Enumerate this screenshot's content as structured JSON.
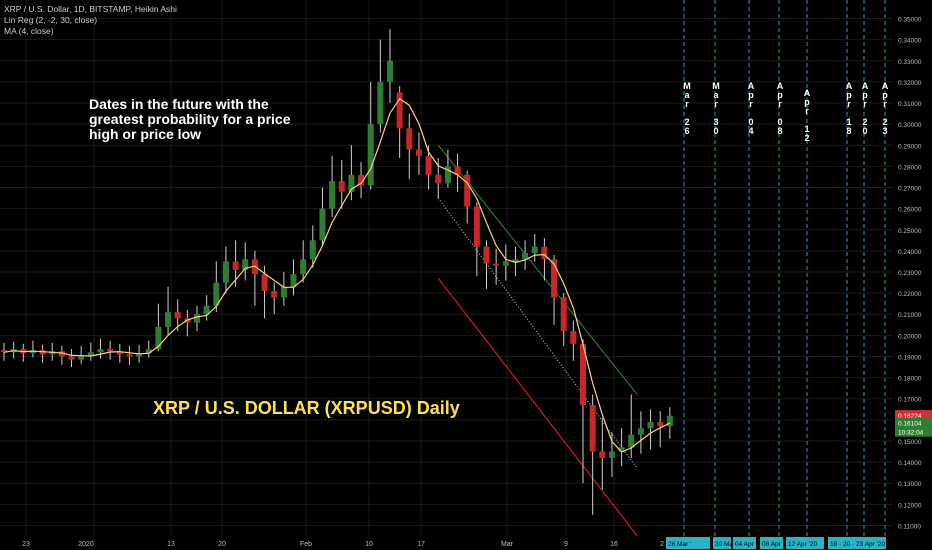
{
  "header": {
    "symbol_line": "XRP / U.S. Dollar, 1D, BITSTAMP, Heikin Ashi",
    "indicator_1": "Lin Reg (2, -2, 30, close)",
    "indicator_2": "MA (4, close)"
  },
  "annotations": {
    "note": "Dates in the future with the greatest probability for a price high or price low",
    "big_title": "XRP / U.S. DOLLAR (XRPUSD) Daily"
  },
  "colors": {
    "background": "#000000",
    "bull": "#2e7d32",
    "bear": "#c62828",
    "ma_line": "#ffd27a",
    "upper_channel": "#2e7d32",
    "lower_channel": "#e31b1b",
    "projection_lines": "#1e9fb0",
    "price_tag_red": "#d32f2f",
    "price_tag_green": "#2e7d32",
    "date_tag": "#23b5c9"
  },
  "chart_data": {
    "type": "candlestick",
    "style": "Heikin Ashi",
    "ylim": [
      0.105,
      0.355
    ],
    "y_ticks": [
      "0.35000",
      "0.34000",
      "0.33000",
      "0.32000",
      "0.31000",
      "0.30000",
      "0.29000",
      "0.28000",
      "0.27000",
      "0.26000",
      "0.25000",
      "0.24000",
      "0.23000",
      "0.22000",
      "0.21000",
      "0.20000",
      "0.19000",
      "0.18000",
      "0.17000",
      "0.16000",
      "0.15000",
      "0.14000",
      "0.13000",
      "0.12000",
      "0.11000"
    ],
    "x_labels": [
      "23",
      "2020",
      "13",
      "20",
      "Feb",
      "10",
      "17",
      "Mar",
      "9",
      "16",
      "2"
    ],
    "grid": true,
    "candles": [
      {
        "o": 0.193,
        "c": 0.192,
        "h": 0.1965,
        "l": 0.188
      },
      {
        "o": 0.192,
        "c": 0.1935,
        "h": 0.197,
        "l": 0.189
      },
      {
        "o": 0.1935,
        "c": 0.1915,
        "h": 0.196,
        "l": 0.1875
      },
      {
        "o": 0.1915,
        "c": 0.193,
        "h": 0.1975,
        "l": 0.1895
      },
      {
        "o": 0.193,
        "c": 0.191,
        "h": 0.1955,
        "l": 0.187
      },
      {
        "o": 0.191,
        "c": 0.1925,
        "h": 0.1965,
        "l": 0.188
      },
      {
        "o": 0.1925,
        "c": 0.19,
        "h": 0.195,
        "l": 0.186
      },
      {
        "o": 0.19,
        "c": 0.1885,
        "h": 0.1935,
        "l": 0.185
      },
      {
        "o": 0.1885,
        "c": 0.1905,
        "h": 0.195,
        "l": 0.1865
      },
      {
        "o": 0.1905,
        "c": 0.192,
        "h": 0.1965,
        "l": 0.188
      },
      {
        "o": 0.192,
        "c": 0.1935,
        "h": 0.1985,
        "l": 0.189
      },
      {
        "o": 0.1935,
        "c": 0.1925,
        "h": 0.1975,
        "l": 0.1885
      },
      {
        "o": 0.1925,
        "c": 0.191,
        "h": 0.196,
        "l": 0.187
      },
      {
        "o": 0.191,
        "c": 0.19,
        "h": 0.195,
        "l": 0.186
      },
      {
        "o": 0.19,
        "c": 0.1915,
        "h": 0.1955,
        "l": 0.187
      },
      {
        "o": 0.1915,
        "c": 0.1935,
        "h": 0.1975,
        "l": 0.1895
      },
      {
        "o": 0.1935,
        "c": 0.204,
        "h": 0.215,
        "l": 0.1925
      },
      {
        "o": 0.204,
        "c": 0.211,
        "h": 0.223,
        "l": 0.2
      },
      {
        "o": 0.211,
        "c": 0.208,
        "h": 0.217,
        "l": 0.202
      },
      {
        "o": 0.208,
        "c": 0.206,
        "h": 0.212,
        "l": 0.1995
      },
      {
        "o": 0.206,
        "c": 0.21,
        "h": 0.214,
        "l": 0.202
      },
      {
        "o": 0.21,
        "c": 0.214,
        "h": 0.219,
        "l": 0.207
      },
      {
        "o": 0.214,
        "c": 0.225,
        "h": 0.235,
        "l": 0.211
      },
      {
        "o": 0.225,
        "c": 0.235,
        "h": 0.242,
        "l": 0.22
      },
      {
        "o": 0.235,
        "c": 0.231,
        "h": 0.245,
        "l": 0.223
      },
      {
        "o": 0.231,
        "c": 0.236,
        "h": 0.244,
        "l": 0.226
      },
      {
        "o": 0.236,
        "c": 0.229,
        "h": 0.24,
        "l": 0.214
      },
      {
        "o": 0.229,
        "c": 0.221,
        "h": 0.233,
        "l": 0.208
      },
      {
        "o": 0.221,
        "c": 0.218,
        "h": 0.225,
        "l": 0.21
      },
      {
        "o": 0.218,
        "c": 0.223,
        "h": 0.23,
        "l": 0.214
      },
      {
        "o": 0.223,
        "c": 0.229,
        "h": 0.236,
        "l": 0.219
      },
      {
        "o": 0.229,
        "c": 0.236,
        "h": 0.245,
        "l": 0.225
      },
      {
        "o": 0.236,
        "c": 0.245,
        "h": 0.252,
        "l": 0.232
      },
      {
        "o": 0.245,
        "c": 0.26,
        "h": 0.27,
        "l": 0.242
      },
      {
        "o": 0.26,
        "c": 0.273,
        "h": 0.285,
        "l": 0.256
      },
      {
        "o": 0.273,
        "c": 0.268,
        "h": 0.283,
        "l": 0.26
      },
      {
        "o": 0.268,
        "c": 0.276,
        "h": 0.29,
        "l": 0.264
      },
      {
        "o": 0.276,
        "c": 0.271,
        "h": 0.282,
        "l": 0.265
      },
      {
        "o": 0.271,
        "c": 0.3,
        "h": 0.32,
        "l": 0.269
      },
      {
        "o": 0.3,
        "c": 0.32,
        "h": 0.34,
        "l": 0.296
      },
      {
        "o": 0.32,
        "c": 0.33,
        "h": 0.345,
        "l": 0.31
      },
      {
        "o": 0.315,
        "c": 0.298,
        "h": 0.318,
        "l": 0.284
      },
      {
        "o": 0.298,
        "c": 0.288,
        "h": 0.305,
        "l": 0.274
      },
      {
        "o": 0.288,
        "c": 0.285,
        "h": 0.296,
        "l": 0.276
      },
      {
        "o": 0.285,
        "c": 0.276,
        "h": 0.29,
        "l": 0.269
      },
      {
        "o": 0.276,
        "c": 0.272,
        "h": 0.284,
        "l": 0.265
      },
      {
        "o": 0.272,
        "c": 0.28,
        "h": 0.288,
        "l": 0.27
      },
      {
        "o": 0.28,
        "c": 0.276,
        "h": 0.286,
        "l": 0.268
      },
      {
        "o": 0.276,
        "c": 0.261,
        "h": 0.278,
        "l": 0.253
      },
      {
        "o": 0.261,
        "c": 0.242,
        "h": 0.263,
        "l": 0.228
      },
      {
        "o": 0.242,
        "c": 0.234,
        "h": 0.245,
        "l": 0.222
      },
      {
        "o": 0.234,
        "c": 0.233,
        "h": 0.241,
        "l": 0.224
      },
      {
        "o": 0.233,
        "c": 0.235,
        "h": 0.243,
        "l": 0.226
      },
      {
        "o": 0.235,
        "c": 0.236,
        "h": 0.242,
        "l": 0.228
      },
      {
        "o": 0.236,
        "c": 0.239,
        "h": 0.245,
        "l": 0.231
      },
      {
        "o": 0.239,
        "c": 0.242,
        "h": 0.248,
        "l": 0.235
      },
      {
        "o": 0.242,
        "c": 0.236,
        "h": 0.246,
        "l": 0.226
      },
      {
        "o": 0.236,
        "c": 0.218,
        "h": 0.238,
        "l": 0.205
      },
      {
        "o": 0.218,
        "c": 0.202,
        "h": 0.22,
        "l": 0.195
      },
      {
        "o": 0.202,
        "c": 0.196,
        "h": 0.207,
        "l": 0.188
      },
      {
        "o": 0.196,
        "c": 0.167,
        "h": 0.198,
        "l": 0.13
      },
      {
        "o": 0.167,
        "c": 0.145,
        "h": 0.172,
        "l": 0.115
      },
      {
        "o": 0.145,
        "c": 0.142,
        "h": 0.161,
        "l": 0.127
      },
      {
        "o": 0.142,
        "c": 0.145,
        "h": 0.154,
        "l": 0.133
      },
      {
        "o": 0.145,
        "c": 0.147,
        "h": 0.156,
        "l": 0.138
      },
      {
        "o": 0.147,
        "c": 0.153,
        "h": 0.172,
        "l": 0.142
      },
      {
        "o": 0.153,
        "c": 0.156,
        "h": 0.164,
        "l": 0.144
      },
      {
        "o": 0.156,
        "c": 0.159,
        "h": 0.165,
        "l": 0.146
      },
      {
        "o": 0.159,
        "c": 0.157,
        "h": 0.164,
        "l": 0.147
      },
      {
        "o": 0.157,
        "c": 0.162,
        "h": 0.166,
        "l": 0.151
      }
    ],
    "channel": {
      "upper": [
        {
          "i": 45,
          "y": 0.29
        },
        {
          "i": 65,
          "y": 0.172
        }
      ],
      "mid": [
        {
          "i": 45,
          "y": 0.265
        },
        {
          "i": 65,
          "y": 0.137
        }
      ],
      "lower": [
        {
          "i": 45,
          "y": 0.227
        },
        {
          "i": 65,
          "y": 0.105
        }
      ]
    },
    "projection_dates": [
      {
        "label": "Mar 26",
        "chars": [
          "M",
          "a",
          "r",
          "",
          "2",
          "6"
        ]
      },
      {
        "label": "Mar 30",
        "chars": [
          "M",
          "a",
          "r",
          "",
          "3",
          "0"
        ]
      },
      {
        "label": "Apr 04",
        "chars": [
          "A",
          "p",
          "r",
          "",
          "0",
          "4"
        ]
      },
      {
        "label": "Apr 08",
        "chars": [
          "A",
          "p",
          "r",
          "",
          "0",
          "8"
        ]
      },
      {
        "label": "Apr 12",
        "chars": [
          "A",
          "p",
          "r",
          "",
          "1",
          "2"
        ]
      },
      {
        "label": "Apr 18",
        "chars": [
          "A",
          "p",
          "r",
          "",
          "1",
          "8"
        ]
      },
      {
        "label": "Apr 20",
        "chars": [
          "A",
          "p",
          "r",
          "",
          "2",
          "0"
        ]
      },
      {
        "label": "Apr 23",
        "chars": [
          "A",
          "p",
          "r",
          "",
          "2",
          "3"
        ]
      }
    ],
    "price_tags": [
      "0.16224",
      "0.16104",
      "10:32:04"
    ],
    "date_tags": [
      "26 Mar '",
      "30 Mar '20",
      "04 Apr '",
      "08 Apr '",
      "12 Apr '20",
      "18 · 20 · 23 Apr '20"
    ]
  }
}
